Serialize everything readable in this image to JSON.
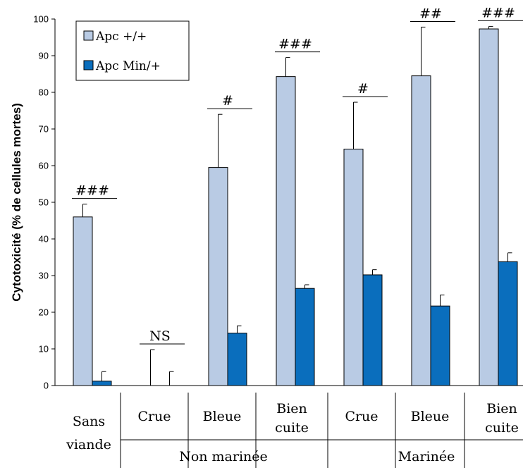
{
  "chart_data": {
    "type": "bar",
    "ylabel": "Cytotoxicité (% de cellules mortes)",
    "ylim": [
      0,
      100
    ],
    "yticks": [
      0,
      10,
      20,
      30,
      40,
      50,
      60,
      70,
      80,
      90,
      100
    ],
    "categories": [
      {
        "label": [
          "Sans",
          "viande"
        ],
        "group": ""
      },
      {
        "label": [
          "Crue"
        ],
        "group": "Non marinée"
      },
      {
        "label": [
          "Bleue"
        ],
        "group": "Non marinée"
      },
      {
        "label": [
          "Bien",
          "cuite"
        ],
        "group": "Non marinée"
      },
      {
        "label": [
          "Crue"
        ],
        "group": "Marinée"
      },
      {
        "label": [
          "Bleue"
        ],
        "group": "Marinée"
      },
      {
        "label": [
          "Bien",
          "cuite"
        ],
        "group": "Marinée"
      }
    ],
    "groups": [
      "Non marinée",
      "Marinée"
    ],
    "series": [
      {
        "name": "Apc +/+",
        "color": "#b9cbe4",
        "values": [
          46,
          0,
          59.5,
          84.3,
          64.5,
          84.5,
          97.3
        ],
        "errors": [
          3.5,
          9.8,
          14.5,
          5.2,
          12.8,
          13.3,
          0.7
        ]
      },
      {
        "name": "Apc Min/+",
        "color": "#0a6ebd",
        "values": [
          1.2,
          0,
          14.3,
          26.5,
          30.2,
          21.7,
          33.8
        ],
        "errors": [
          2.6,
          3.8,
          2,
          1,
          1.4,
          3,
          2.4
        ]
      }
    ],
    "significance": [
      "###",
      "NS",
      "#",
      "###",
      "#",
      "##",
      "###"
    ],
    "legend_position": "top-left",
    "grid": false
  }
}
